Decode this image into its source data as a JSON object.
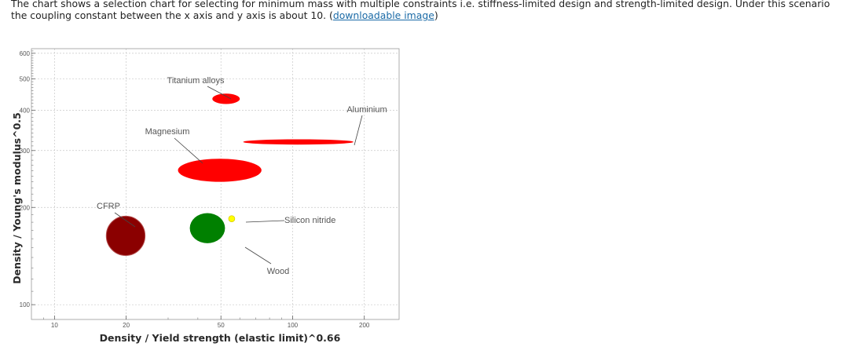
{
  "caption": {
    "text": "The chart shows a selection chart for selecting for minimum mass with multiple constraints i.e. stiffness-limited design and strength-limited design. Under this scenario the coupling constant between the x axis and y axis is about 10. (",
    "link_text": "downloadable image",
    "tail": ")"
  },
  "chart_data": {
    "type": "scatter",
    "xlabel": "Density / Yield strength (elastic limit)^0.66",
    "ylabel": "Density / Young's modulus^0.5",
    "xscale": "log",
    "yscale": "log",
    "xlim": [
      8,
      280
    ],
    "ylim": [
      90,
      620
    ],
    "x_ticks": [
      10,
      20,
      50,
      100,
      200
    ],
    "y_ticks": [
      100,
      200,
      300,
      400,
      500,
      600
    ],
    "grid": true,
    "materials": [
      {
        "name": "Titanium alloys",
        "x_range": [
          46,
          60
        ],
        "y_range": [
          418,
          450
        ],
        "color": "#ff0000"
      },
      {
        "name": "Aluminium",
        "x_range": [
          62,
          180
        ],
        "y_range": [
          313,
          325
        ],
        "color": "#ff0000"
      },
      {
        "name": "Magnesium",
        "x_range": [
          33,
          74
        ],
        "y_range": [
          240,
          283
        ],
        "color": "#ff0000"
      },
      {
        "name": "CFRP",
        "x_range": [
          16.5,
          24
        ],
        "y_range": [
          142,
          188
        ],
        "color": "#8b0000"
      },
      {
        "name": "Wood",
        "x_range": [
          37,
          52
        ],
        "y_range": [
          155,
          192
        ],
        "color": "#008000"
      },
      {
        "name": "Silicon nitride",
        "x_range": [
          54,
          57
        ],
        "y_range": [
          182,
          187
        ],
        "color": "#ffff00"
      }
    ]
  }
}
